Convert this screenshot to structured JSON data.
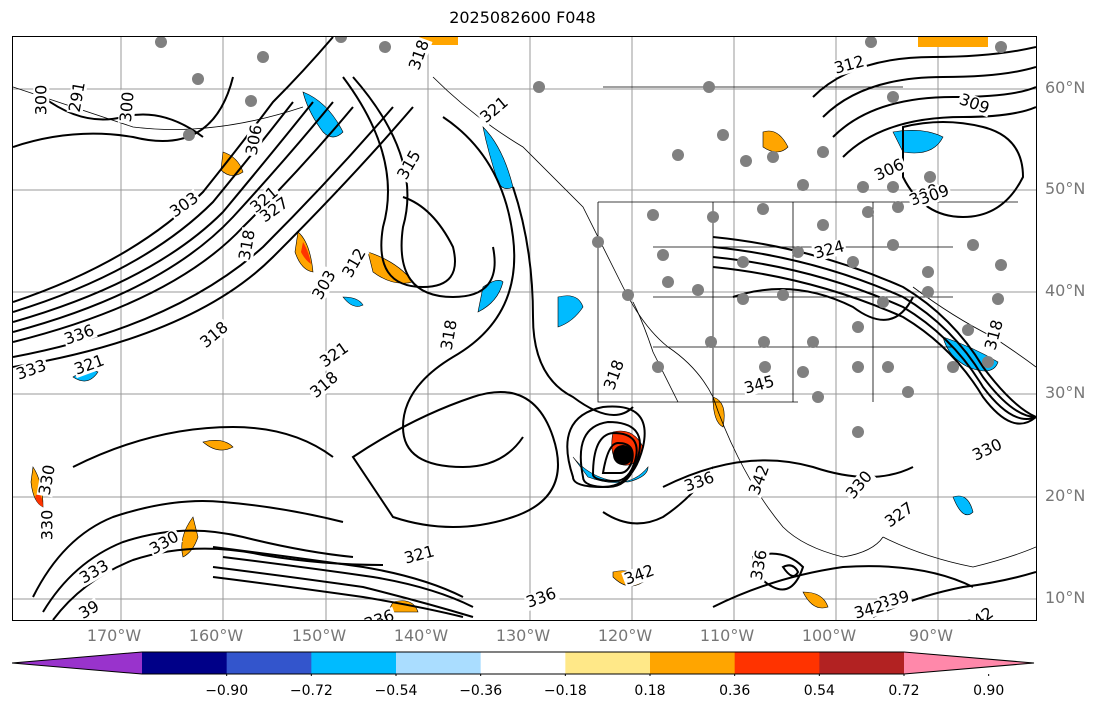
{
  "title": "2025082600 F048",
  "lat_labels": [
    "60°N",
    "50°N",
    "40°N",
    "30°N",
    "20°N",
    "10°N"
  ],
  "lon_labels": [
    "170°W",
    "160°W",
    "150°W",
    "140°W",
    "130°W",
    "120°W",
    "110°W",
    "100°W",
    "90°W"
  ],
  "contour_labels": [
    "291",
    "300",
    "300",
    "303",
    "303",
    "306",
    "309",
    "309",
    "312",
    "312",
    "315",
    "318",
    "318",
    "318",
    "318",
    "318",
    "318",
    "321",
    "321",
    "321",
    "321",
    "321",
    "324",
    "327",
    "327",
    "330",
    "330",
    "330",
    "330",
    "330",
    "333",
    "333",
    "336",
    "336",
    "336",
    "336",
    "336",
    "339",
    "342",
    "342",
    "342",
    "342",
    "345",
    "309",
    "39",
    "342",
    "318",
    "306"
  ],
  "colorbar": {
    "ticks": [
      "−0.90",
      "−0.72",
      "−0.54",
      "−0.36",
      "−0.18",
      "0.18",
      "0.36",
      "0.54",
      "0.72",
      "0.90"
    ],
    "colors": [
      "#9933cc",
      "#000088",
      "#3355cc",
      "#00bbff",
      "#aaddff",
      "#ffffff",
      "#ffe888",
      "#ffa500",
      "#ff3300",
      "#b22222",
      "#ff88aa"
    ]
  }
}
